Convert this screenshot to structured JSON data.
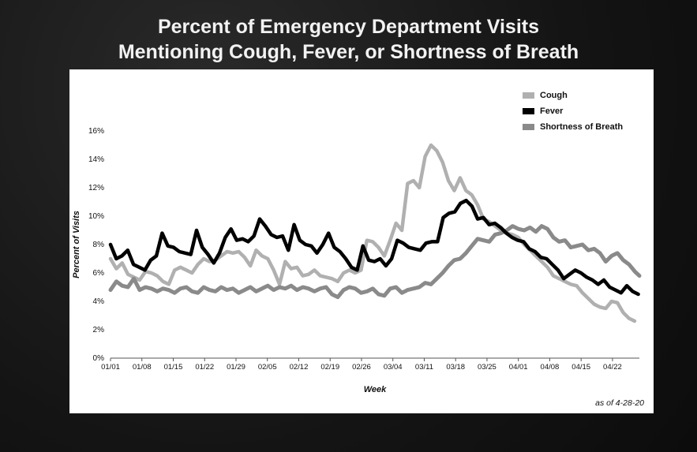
{
  "chart_data": {
    "type": "line",
    "title": [
      "Percent of Emergency Department Visits",
      "Mentioning Cough, Fever, or Shortness of Breath"
    ],
    "xlabel": "Week",
    "ylabel": "Percent of Visits",
    "note": "as of 4-28-20",
    "ylim": [
      0,
      16
    ],
    "yticks": [
      "0%",
      "2%",
      "4%",
      "6%",
      "8%",
      "10%",
      "12%",
      "14%",
      "16%"
    ],
    "xticks": [
      "01/01",
      "01/08",
      "01/15",
      "01/22",
      "01/29",
      "02/05",
      "02/12",
      "02/19",
      "02/26",
      "03/04",
      "03/11",
      "03/18",
      "03/25",
      "04/01",
      "04/08",
      "04/15",
      "04/22"
    ],
    "x_start_day": 0,
    "x_end_day": 118,
    "legend_position": "top-right",
    "series": [
      {
        "name": "Cough",
        "color": "#b0b0b0",
        "values": [
          7.0,
          6.3,
          6.7,
          5.9,
          5.7,
          5.5,
          6.1,
          6.0,
          5.8,
          5.4,
          5.2,
          6.2,
          6.4,
          6.2,
          6.0,
          6.6,
          7.0,
          6.8,
          6.9,
          7.2,
          7.5,
          7.4,
          7.5,
          7.1,
          6.5,
          7.6,
          7.2,
          7.0,
          6.2,
          5.2,
          6.8,
          6.3,
          6.4,
          5.8,
          5.9,
          6.2,
          5.8,
          5.7,
          5.6,
          5.4,
          6.0,
          6.2,
          6.0,
          6.2,
          8.3,
          8.2,
          7.8,
          7.2,
          8.3,
          9.5,
          9.0,
          12.3,
          12.5,
          12.0,
          14.2,
          15.0,
          14.6,
          13.8,
          12.5,
          11.8,
          12.7,
          11.8,
          11.5,
          10.8,
          9.8,
          9.6,
          9.3,
          9.0,
          8.8,
          8.7,
          8.5,
          8.0,
          7.6,
          7.2,
          6.8,
          6.4,
          5.8,
          5.6,
          5.4,
          5.2,
          5.1,
          4.6,
          4.2,
          3.8,
          3.6,
          3.5,
          4.0,
          3.9,
          3.2,
          2.8,
          2.6
        ],
        "values_day_step": 1.3
      },
      {
        "name": "Fever",
        "color": "#000000",
        "values": [
          8.0,
          7.0,
          7.2,
          7.6,
          6.6,
          6.4,
          6.2,
          6.9,
          7.2,
          8.8,
          7.9,
          7.8,
          7.5,
          7.4,
          7.3,
          9.0,
          7.8,
          7.3,
          6.7,
          7.4,
          8.5,
          9.1,
          8.3,
          8.4,
          8.2,
          8.6,
          9.8,
          9.3,
          8.7,
          8.5,
          8.6,
          7.6,
          9.4,
          8.3,
          8.0,
          7.9,
          7.4,
          8.0,
          8.8,
          7.8,
          7.5,
          7.0,
          6.4,
          6.2,
          7.9,
          6.9,
          6.8,
          7.0,
          6.5,
          7.0,
          8.3,
          8.1,
          7.8,
          7.7,
          7.6,
          8.1,
          8.2,
          8.2,
          9.9,
          10.2,
          10.3,
          10.9,
          11.1,
          10.7,
          9.8,
          9.9,
          9.4,
          9.5,
          9.2,
          8.8,
          8.5,
          8.3,
          8.2,
          7.7,
          7.5,
          7.1,
          7.0,
          6.6,
          6.2,
          5.6,
          5.9,
          6.2,
          6.0,
          5.7,
          5.5,
          5.2,
          5.5,
          5.0,
          4.8,
          4.6,
          5.1,
          4.7,
          4.5
        ],
        "values_day_step": 1.28
      },
      {
        "name": "Shortness of Breath",
        "color": "#8a8a8a",
        "values": [
          4.8,
          5.4,
          5.1,
          5.0,
          5.6,
          4.8,
          5.0,
          4.9,
          4.7,
          4.9,
          4.8,
          4.6,
          4.9,
          5.0,
          4.7,
          4.6,
          5.0,
          4.8,
          4.7,
          5.0,
          4.8,
          4.9,
          4.6,
          4.8,
          5.0,
          4.7,
          4.9,
          5.1,
          4.8,
          5.0,
          4.9,
          5.1,
          4.8,
          5.0,
          4.9,
          4.7,
          4.9,
          5.0,
          4.5,
          4.3,
          4.8,
          5.0,
          4.9,
          4.6,
          4.7,
          4.9,
          4.5,
          4.4,
          4.9,
          5.0,
          4.6,
          4.8,
          4.9,
          5.0,
          5.3,
          5.2,
          5.6,
          6.0,
          6.5,
          6.9,
          7.0,
          7.4,
          7.9,
          8.4,
          8.3,
          8.2,
          8.7,
          8.8,
          9.0,
          9.3,
          9.1,
          9.0,
          9.2,
          8.9,
          9.3,
          9.1,
          8.5,
          8.2,
          8.3,
          7.8,
          7.9,
          8.0,
          7.6,
          7.7,
          7.4,
          6.8,
          7.2,
          7.4,
          6.9,
          6.6,
          6.1,
          5.8
        ],
        "values_day_step": 1.3
      }
    ]
  }
}
